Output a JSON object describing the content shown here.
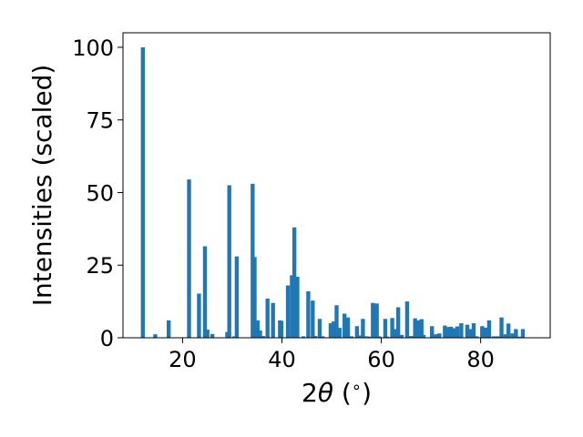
{
  "chart_data": {
    "type": "bar",
    "title": "",
    "xlabel_prefix": "2",
    "xlabel_symbol": "θ",
    "xlabel_suffix": " (",
    "xlabel_degree": "∘",
    "xlabel_close": ")",
    "ylabel": "Intensities (scaled)",
    "xlim": [
      8,
      94
    ],
    "ylim": [
      0,
      105
    ],
    "xticks": [
      20,
      40,
      60,
      80
    ],
    "yticks": [
      0,
      25,
      50,
      75,
      100
    ],
    "bar_color": "#1f77b4",
    "bar_width": 0.8,
    "grid": false,
    "legend": "none",
    "x": [
      12.0,
      14.5,
      17.2,
      21.3,
      23.3,
      24.5,
      25.0,
      26.0,
      29.0,
      29.4,
      30.4,
      30.9,
      34.1,
      34.5,
      35.1,
      35.6,
      36.2,
      37.1,
      38.2,
      39.6,
      39.9,
      41.2,
      42.0,
      42.5,
      43.1,
      44.3,
      45.3,
      46.2,
      46.7,
      47.6,
      48.2,
      49.8,
      50.4,
      51.0,
      51.6,
      52.6,
      53.3,
      54.0,
      55.1,
      55.8,
      56.3,
      57.0,
      57.5,
      58.3,
      59.1,
      59.6,
      60.8,
      61.2,
      62.2,
      62.9,
      63.4,
      64.1,
      65.2,
      66.0,
      66.8,
      67.5,
      68.1,
      68.5,
      70.2,
      71.0,
      71.7,
      72.8,
      73.4,
      74.0,
      74.6,
      75.3,
      76.1,
      77.3,
      78.0,
      78.6,
      79.2,
      80.3,
      81.0,
      81.7,
      82.6,
      83.4,
      84.2,
      85.0,
      85.6,
      86.4,
      87.1,
      87.8,
      88.5
    ],
    "values": [
      100,
      1.2,
      6.0,
      54.5,
      15.2,
      31.5,
      2.8,
      1.3,
      2.0,
      52.5,
      0.5,
      28.0,
      53.0,
      27.8,
      6.0,
      2.5,
      0.6,
      13.5,
      12.0,
      6.0,
      5.8,
      18.0,
      21.5,
      38.0,
      21.0,
      0.5,
      16.0,
      12.8,
      0.6,
      6.5,
      0.5,
      5.0,
      5.6,
      11.2,
      3.4,
      8.3,
      7.0,
      0.5,
      4.0,
      0.8,
      6.5,
      0.5,
      0.4,
      12.0,
      11.8,
      0.5,
      6.5,
      0.4,
      6.8,
      3.0,
      10.5,
      1.0,
      12.5,
      0.6,
      6.7,
      6.0,
      6.4,
      1.0,
      4.0,
      1.2,
      1.5,
      4.2,
      3.7,
      3.8,
      3.3,
      3.9,
      5.0,
      4.5,
      3.0,
      5.0,
      0.5,
      4.0,
      3.5,
      6.0,
      0.5,
      0.5,
      7.0,
      1.2,
      4.9,
      1.5,
      3.0,
      0.4,
      3.0
    ]
  }
}
